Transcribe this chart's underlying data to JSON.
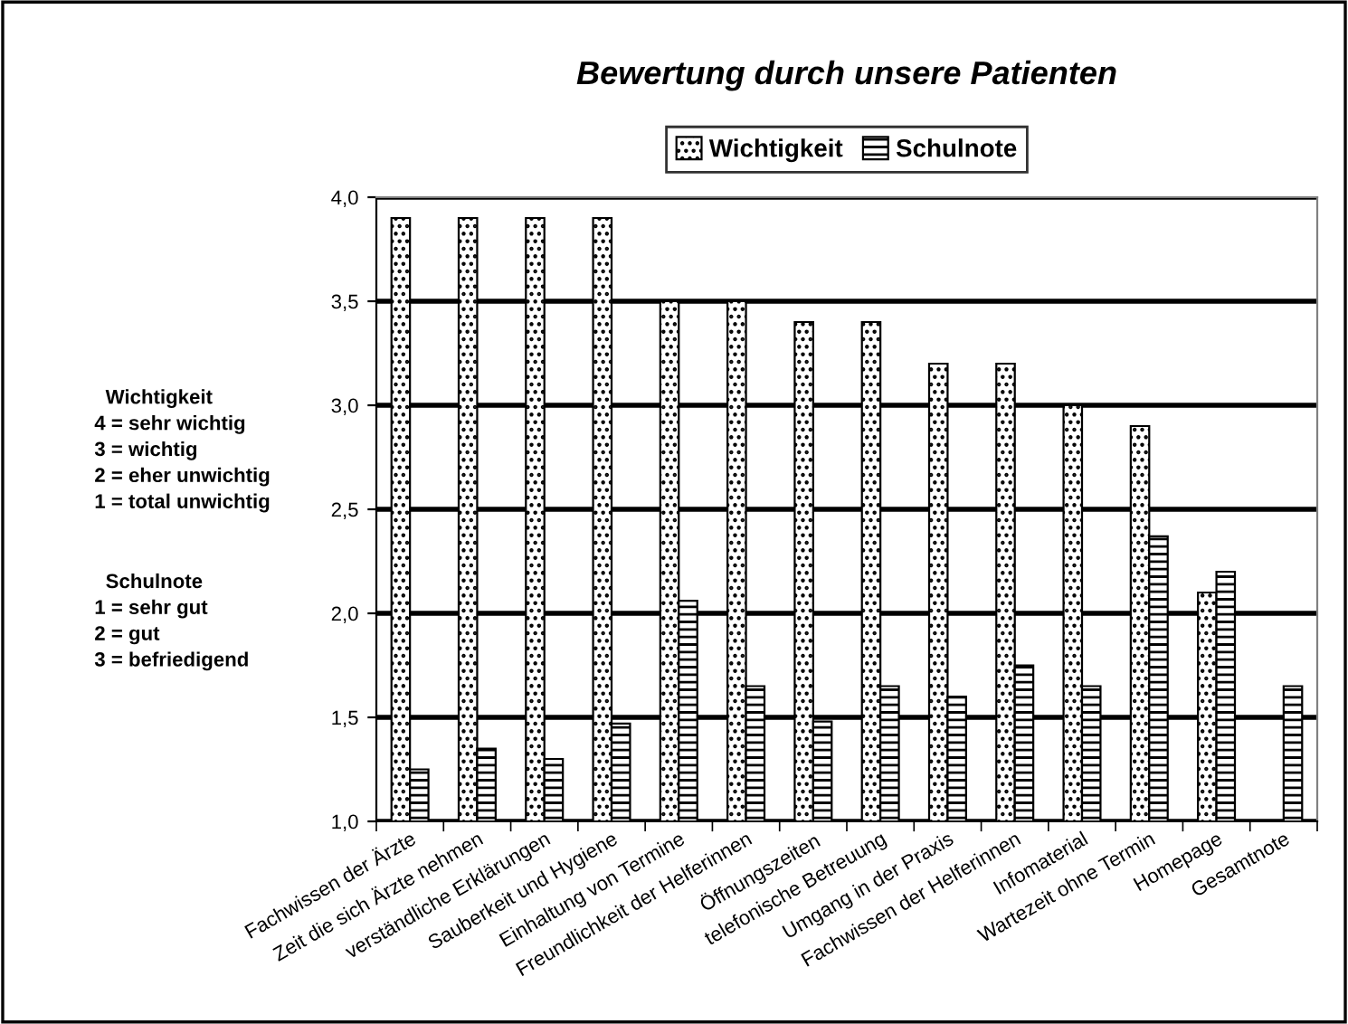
{
  "chart_data": {
    "type": "bar",
    "title": "Bewertung durch unsere Patienten",
    "categories": [
      "Fachwissen der Ärzte",
      "Zeit die sich Ärzte nehmen",
      "verständliche Erklärungen",
      "Sauberkeit und Hygiene",
      "Einhaltung von Termine",
      "Freundlichkeit der Helferinnen",
      "Öffnungszeiten",
      "telefonische Betreuung",
      "Umgang in der Praxis",
      "Fachwissen der Helferinnen",
      "Infomaterial",
      "Wartezeit ohne Termin",
      "Homepage",
      "Gesamtnote"
    ],
    "series": [
      {
        "name": "Wichtigkeit",
        "color": "#000000",
        "values": [
          3.9,
          3.9,
          3.9,
          3.9,
          3.5,
          3.5,
          3.4,
          3.4,
          3.2,
          3.2,
          3.0,
          2.9,
          2.1,
          null
        ]
      },
      {
        "name": "Schulnote",
        "color": "#000000",
        "values": [
          1.25,
          1.35,
          1.3,
          1.47,
          2.06,
          1.65,
          1.48,
          1.65,
          1.6,
          1.75,
          1.65,
          2.37,
          2.2,
          1.65
        ]
      }
    ],
    "ylim": [
      1.0,
      4.0
    ],
    "yticks": [
      {
        "value": 1.0,
        "label": "1,0"
      },
      {
        "value": 1.5,
        "label": "1,5"
      },
      {
        "value": 2.0,
        "label": "2,0"
      },
      {
        "value": 2.5,
        "label": "2,5"
      },
      {
        "value": 3.0,
        "label": "3,0"
      },
      {
        "value": 3.5,
        "label": "3,5"
      },
      {
        "value": 4.0,
        "label": "4,0"
      }
    ],
    "grid": "y",
    "legend": "top",
    "annotations": [
      "  Wichtigkeit\n4 = sehr wichtig\n3 = wichtig\n2 = eher unwichtig\n1 = total unwichtig",
      "  Schulnote\n1 = sehr gut\n2 = gut\n3 = befriedigend"
    ]
  }
}
